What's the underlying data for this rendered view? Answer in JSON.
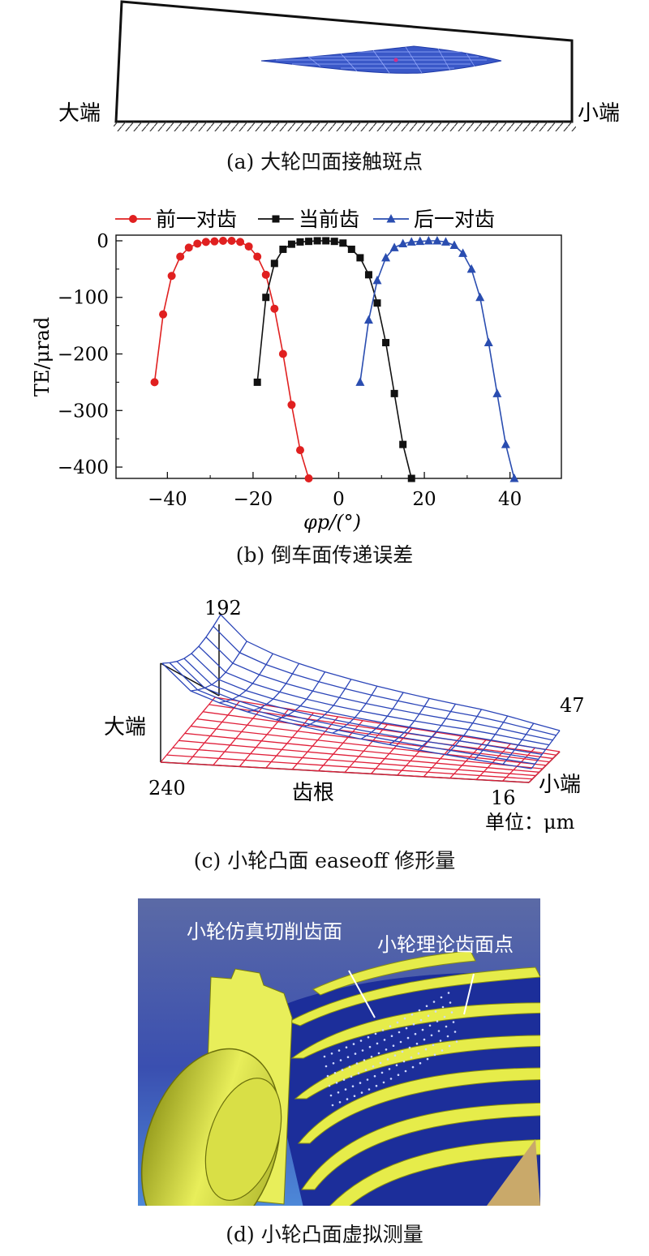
{
  "panel_a": {
    "caption": "(a) 大轮凹面接触斑点",
    "left_label": "大端",
    "right_label": "小端"
  },
  "panel_b": {
    "caption": "(b) 倒车面传递误差",
    "legend": [
      "前一对齿",
      "当前齿",
      "后一对齿"
    ]
  },
  "chart_data": {
    "type": "line",
    "title": "",
    "xlabel": "φp/(°)",
    "ylabel": "TE/μrad",
    "xlim": [
      -52,
      52
    ],
    "ylim": [
      -420,
      10
    ],
    "xticks": [
      -40,
      -20,
      0,
      20,
      40
    ],
    "yticks": [
      0,
      -100,
      -200,
      -300,
      -400
    ],
    "legend_position": "top",
    "series": [
      {
        "name": "前一对齿",
        "color": "#e02020",
        "marker": "circle",
        "x": [
          -43,
          -41,
          -39,
          -37,
          -35,
          -33,
          -31,
          -29,
          -27,
          -25,
          -23,
          -21,
          -19,
          -17,
          -15,
          -13,
          -11,
          -9,
          -7
        ],
        "y": [
          -250,
          -130,
          -62,
          -28,
          -12,
          -5,
          -2,
          -1,
          0,
          0,
          -2,
          -10,
          -28,
          -60,
          -120,
          -200,
          -290,
          -370,
          -420
        ]
      },
      {
        "name": "当前齿",
        "color": "#111111",
        "marker": "square",
        "x": [
          -19,
          -17,
          -15,
          -13,
          -11,
          -9,
          -7,
          -5,
          -3,
          -1,
          1,
          3,
          5,
          7,
          9,
          11,
          13,
          15,
          17
        ],
        "y": [
          -250,
          -100,
          -40,
          -15,
          -6,
          -2,
          -1,
          0,
          0,
          -1,
          -4,
          -15,
          -30,
          -60,
          -110,
          -180,
          -270,
          -360,
          -420
        ]
      },
      {
        "name": "后一对齿",
        "color": "#2a4db0",
        "marker": "triangle",
        "x": [
          5,
          7,
          9,
          11,
          13,
          15,
          17,
          19,
          21,
          23,
          25,
          27,
          29,
          31,
          33,
          35,
          37,
          39,
          41
        ],
        "y": [
          -250,
          -140,
          -70,
          -30,
          -12,
          -5,
          -2,
          -1,
          0,
          0,
          -2,
          -8,
          -22,
          -50,
          -100,
          -180,
          -270,
          -360,
          -420
        ]
      }
    ]
  },
  "panel_c": {
    "caption": "(c) 小轮凸面 easeoff 修形量",
    "val_192": "192",
    "val_47": "47",
    "val_240": "240",
    "val_16": "16",
    "label_big": "大端",
    "label_small": "小端",
    "label_root": "齿根",
    "unit": "单位：μm"
  },
  "panel_d": {
    "caption": "(d) 小轮凸面虚拟测量",
    "label_sim": "小轮仿真切削齿面",
    "label_theory": "小轮理论齿面点"
  }
}
